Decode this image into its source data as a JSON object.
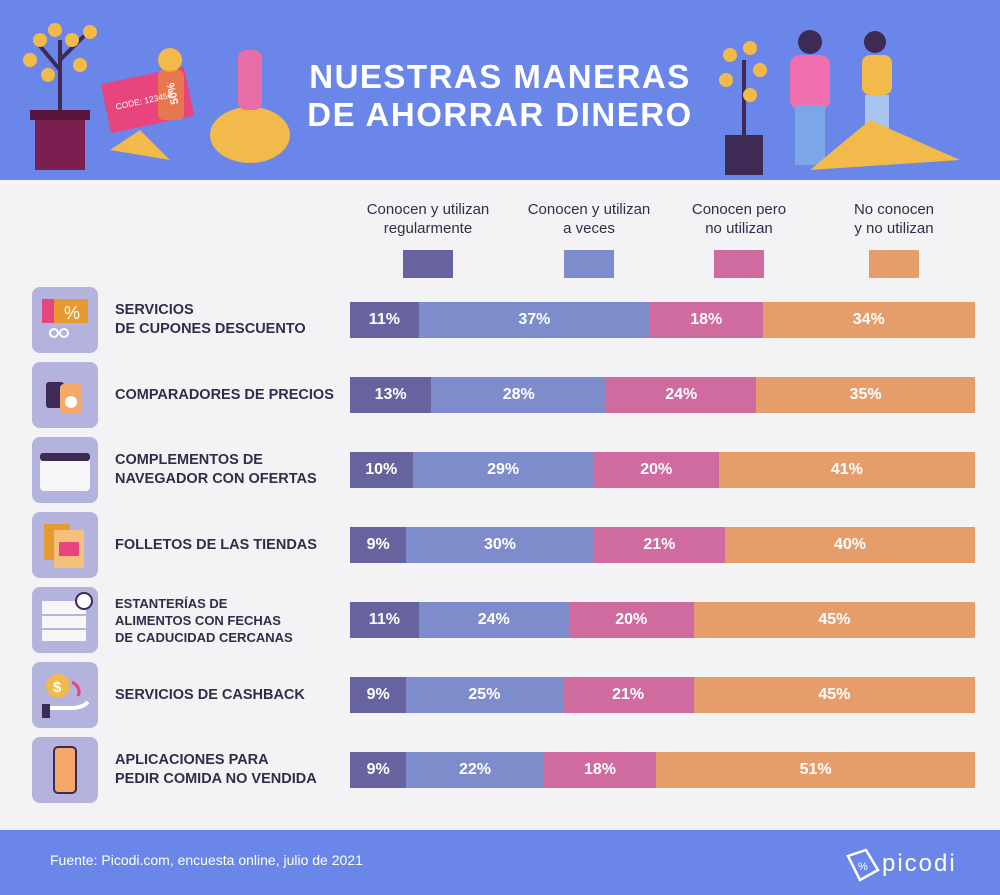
{
  "header": {
    "title": "NUESTRAS MANERAS DE AHORRAR DINERO",
    "title_line1": "NUESTRAS MANERAS",
    "title_line2": "DE AHORRAR DINERO",
    "coupon_code": "CODE: 123456",
    "coupon_discount": "50%"
  },
  "colors": {
    "background_header": "#6a86e8",
    "page": "#f3f3f5",
    "icon_box": "#b3b3dd"
  },
  "chart_data": {
    "type": "bar",
    "orientation": "horizontal",
    "stacked": true,
    "xlim": [
      0,
      100
    ],
    "legend_position": "top",
    "categories": [
      "SERVICIOS\nDE CUPONES DESCUENTO",
      "COMPARADORES DE PRECIOS",
      "COMPLEMENTOS DE\nNAVEGADOR CON OFERTAS",
      "FOLLETOS DE LAS TIENDAS",
      "ESTANTERÍAS DE\nALIMENTOS CON FECHAS\nDE CADUCIDAD CERCANAS",
      "SERVICIOS DE CASHBACK",
      "APLICACIONES PARA\nPEDIR COMIDA NO VENDIDA"
    ],
    "icons": [
      "coupon-scissors-icon",
      "price-tags-icon",
      "browser-window-icon",
      "leaflets-icon",
      "shelf-clock-icon",
      "cashback-hand-icon",
      "smartphone-icon"
    ],
    "series": [
      {
        "name": "Conocen y utilizan\nregularmente",
        "color": "#67639f",
        "values": [
          11,
          13,
          10,
          9,
          11,
          9,
          9
        ]
      },
      {
        "name": "Conocen y utilizan\na veces",
        "color": "#7e8ccc",
        "values": [
          37,
          28,
          29,
          30,
          24,
          25,
          22
        ]
      },
      {
        "name": "Conocen pero\nno utilizan",
        "color": "#d06b9f",
        "values": [
          18,
          24,
          20,
          21,
          20,
          21,
          18
        ]
      },
      {
        "name": "No conocen\ny no utilizan",
        "color": "#e59d6c",
        "values": [
          34,
          35,
          41,
          40,
          45,
          45,
          51
        ]
      }
    ]
  },
  "footer": {
    "source": "Fuente: Picodi.com, encuesta online, julio de 2021",
    "logo": "picodi"
  }
}
